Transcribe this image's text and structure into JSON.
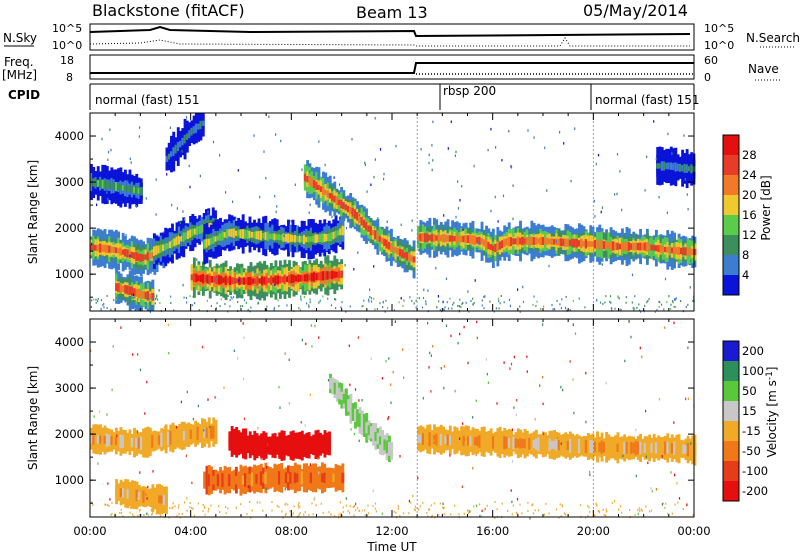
{
  "header": {
    "radar": "Blackstone (fitACF)",
    "beam": "Beam 13",
    "date": "05/May/2014"
  },
  "param_panels": {
    "nsky_label": "N.Sky",
    "nsky_ticks": [
      "10^5",
      "10^0"
    ],
    "nsearch_label": "N.Search",
    "nsearch_ticks": [
      "10^5",
      "10^0"
    ],
    "freq_label": "Freq.",
    "freq_unit": "[MHz]",
    "freq_ticks": [
      "18",
      "8"
    ],
    "nave_label": "Nave",
    "nave_ticks": [
      "60",
      "0"
    ],
    "cpid_label": "CPID",
    "cpid_segments": [
      {
        "label": "normal (fast) 151",
        "start": 0,
        "end": 14
      },
      {
        "label": "rbsp 200",
        "start": 14,
        "end": 20
      },
      {
        "label": "normal (fast) 151",
        "start": 20,
        "end": 24
      }
    ]
  },
  "chart_data": [
    {
      "type": "heatmap",
      "name": "power",
      "ylabel": "Slant Range [km]",
      "y_ticks": [
        "1000",
        "2000",
        "3000",
        "4000"
      ],
      "ylim": [
        200,
        4500
      ],
      "xlim": [
        0,
        24
      ],
      "colorbar_label": "Power [dB]",
      "colorbar_ticks": [
        "4",
        "8",
        "12",
        "16",
        "20",
        "24",
        "28"
      ],
      "colorbar_range": [
        0,
        32
      ],
      "colors": [
        "#0a14d8",
        "#3c7dd2",
        "#3c8f5a",
        "#5acb4a",
        "#f0c830",
        "#f07a28",
        "#e63c28",
        "#e60f0f"
      ],
      "bands": [
        {
          "x": [
            0,
            0.5,
            1,
            1.5,
            2,
            2.5,
            3
          ],
          "y": [
            1580,
            1560,
            1520,
            1440,
            1350,
            1420,
            1560
          ],
          "dB": 24
        },
        {
          "x": [
            2.5,
            3,
            3.5,
            4,
            4.5,
            5
          ],
          "y": [
            1500,
            1600,
            1750,
            1900,
            2000,
            2050
          ],
          "dB": 16
        },
        {
          "x": [
            1,
            1.5,
            2,
            2.5
          ],
          "y": [
            720,
            650,
            560,
            500
          ],
          "dB": 24
        },
        {
          "x": [
            4,
            4.5,
            5,
            5.5,
            6,
            6.5,
            7,
            7.5,
            8,
            8.5,
            9,
            9.5,
            10
          ],
          "y": [
            930,
            900,
            880,
            860,
            850,
            850,
            860,
            880,
            900,
            920,
            950,
            980,
            1000
          ],
          "dB": 28
        },
        {
          "x": [
            4.5,
            5.5,
            6.5,
            7.5,
            8.5,
            9.5,
            10
          ],
          "y": [
            1650,
            1900,
            1850,
            1800,
            1750,
            1800,
            1950
          ],
          "dB": 16
        },
        {
          "x": [
            8.5,
            9,
            9.5,
            10,
            10.5,
            11,
            11.5,
            12,
            12.5,
            12.9
          ],
          "y": [
            3100,
            2900,
            2700,
            2500,
            2300,
            2000,
            1750,
            1550,
            1400,
            1300
          ],
          "dB": 24
        },
        {
          "x": [
            13,
            14,
            15,
            15.5,
            16,
            16.5,
            17,
            18,
            19,
            20,
            21,
            22,
            23,
            24
          ],
          "y": [
            1800,
            1780,
            1760,
            1720,
            1550,
            1700,
            1720,
            1720,
            1680,
            1650,
            1600,
            1600,
            1520,
            1480
          ],
          "dB": 24
        },
        {
          "x": [
            0,
            0.5,
            1,
            1.5,
            2
          ],
          "y": [
            3000,
            2950,
            2900,
            2850,
            2800
          ],
          "dB": 12
        },
        {
          "x": [
            3,
            3.5,
            4,
            4.5
          ],
          "y": [
            3500,
            3800,
            4100,
            4300
          ],
          "dB": 8
        },
        {
          "x": [
            22.5,
            23,
            23.5,
            24
          ],
          "y": [
            3350,
            3350,
            3300,
            3280
          ],
          "dB": 8
        }
      ]
    },
    {
      "type": "heatmap",
      "name": "velocity",
      "ylabel": "Slant Range [km]",
      "y_ticks": [
        "1000",
        "2000",
        "3000",
        "4000"
      ],
      "ylim": [
        200,
        4500
      ],
      "xlim": [
        0,
        24
      ],
      "xlabel": "Time UT",
      "x_ticks": [
        "00:00",
        "04:00",
        "08:00",
        "12:00",
        "16:00",
        "20:00",
        "00:00"
      ],
      "colorbar_label": "Velocity [m s^-1]",
      "colorbar_ticks": [
        "200",
        "100",
        "50",
        "15",
        "-15",
        "-50",
        "-100",
        "-200"
      ],
      "colorbar_range": [
        -250,
        250
      ],
      "colors": [
        "#1a1ad2",
        "#2d8f5a",
        "#5ac83c",
        "#c8c8c8",
        "#f0aa28",
        "#f07819",
        "#e63c19",
        "#e60f0f"
      ],
      "bands": [
        {
          "x": [
            0,
            1,
            2,
            3,
            4,
            5
          ],
          "y": [
            1900,
            1850,
            1800,
            1900,
            2000,
            2050
          ],
          "v": 0
        },
        {
          "x": [
            4.5,
            6,
            7,
            8,
            9,
            10
          ],
          "y": [
            1000,
            1000,
            1050,
            1050,
            1050,
            1050
          ],
          "v": -40
        },
        {
          "x": [
            5.5,
            6.5,
            7.5,
            8.5,
            9.5
          ],
          "y": [
            1850,
            1750,
            1750,
            1750,
            1800
          ],
          "v": -150
        },
        {
          "x": [
            9.5,
            10,
            10.5,
            11,
            11.5,
            12
          ],
          "y": [
            3100,
            2800,
            2400,
            2100,
            1850,
            1600
          ],
          "v": 50
        },
        {
          "x": [
            13,
            15,
            17,
            19,
            21,
            23,
            24
          ],
          "y": [
            1900,
            1850,
            1800,
            1750,
            1700,
            1700,
            1650
          ],
          "v": 0
        },
        {
          "x": [
            1,
            2,
            3
          ],
          "y": [
            750,
            650,
            560
          ],
          "v": 0
        }
      ]
    }
  ]
}
